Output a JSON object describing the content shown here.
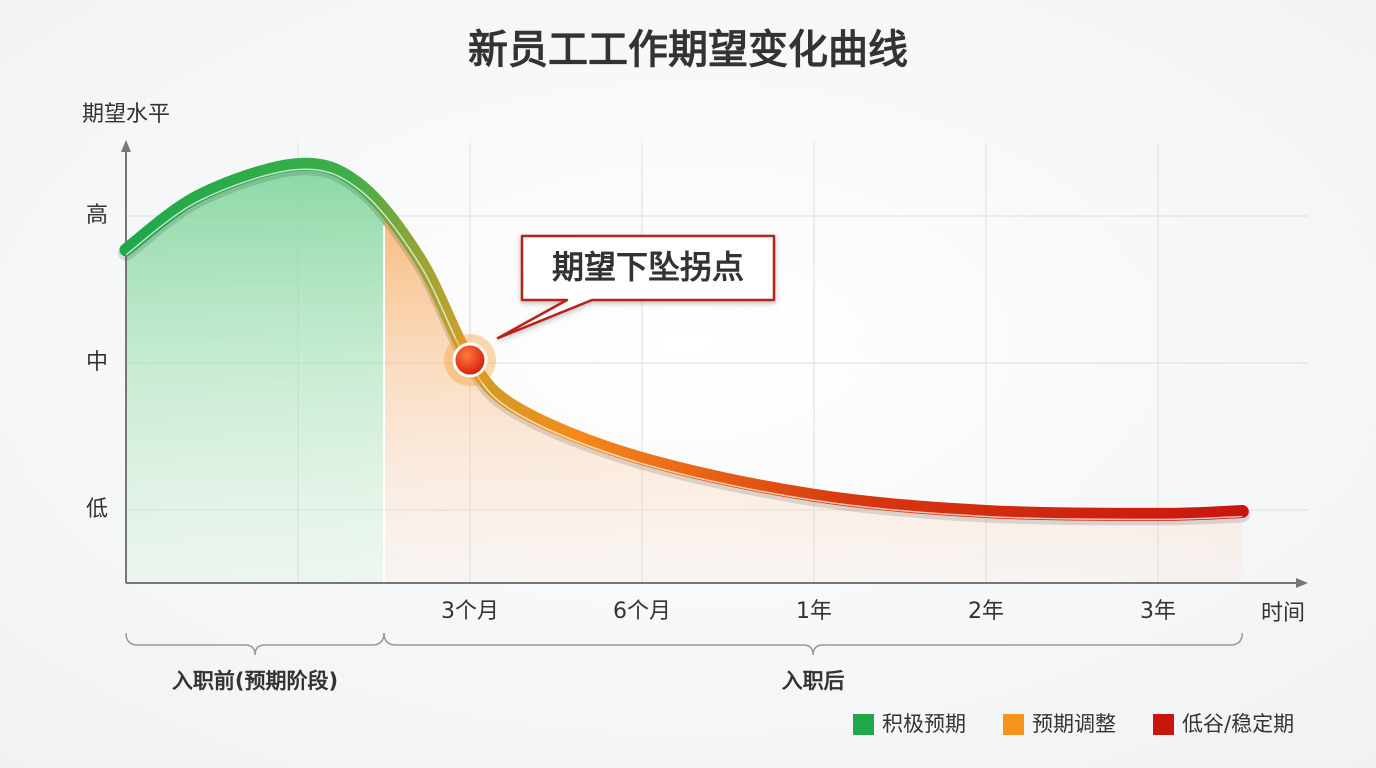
{
  "chart_data": {
    "type": "line",
    "title": "新员工工作期望变化曲线",
    "y_label": "期望水平",
    "x_label": "时间",
    "xlim": [
      0,
      6.9
    ],
    "ylim": [
      0.5,
      3.5
    ],
    "xticks": [
      {
        "value": 2,
        "label": "3个月"
      },
      {
        "value": 3,
        "label": "6个月"
      },
      {
        "value": 4,
        "label": "1年"
      },
      {
        "value": 5,
        "label": "2年"
      },
      {
        "value": 6,
        "label": "3年"
      }
    ],
    "yticks": [
      {
        "value": 1,
        "label": "低"
      },
      {
        "value": 2,
        "label": "中"
      },
      {
        "value": 3,
        "label": "高"
      }
    ],
    "grid": true,
    "x": [
      0,
      0.43,
      1,
      1.36,
      1.71,
      2,
      2.29,
      3,
      4,
      5,
      6,
      6.49
    ],
    "series": [
      {
        "values": [
          2.77,
          3.14,
          3.35,
          3.21,
          2.7,
          2.02,
          1.68,
          1.35,
          1.1,
          0.99,
          0.97,
          0.99
        ]
      }
    ],
    "annotation": {
      "text": "期望下坠拐点",
      "index": 5
    },
    "phases": [
      {
        "label": "入职前(预期阶段)",
        "start": 0,
        "end": 1.5
      },
      {
        "label": "入职后",
        "start": 1.5,
        "end": 6.49
      }
    ],
    "legend": [
      {
        "name": "积极预期",
        "color": "#1fa84a"
      },
      {
        "name": "预期调整",
        "color": "#f7941d"
      },
      {
        "name": "低谷/稳定期",
        "color": "#c8160f"
      }
    ]
  }
}
